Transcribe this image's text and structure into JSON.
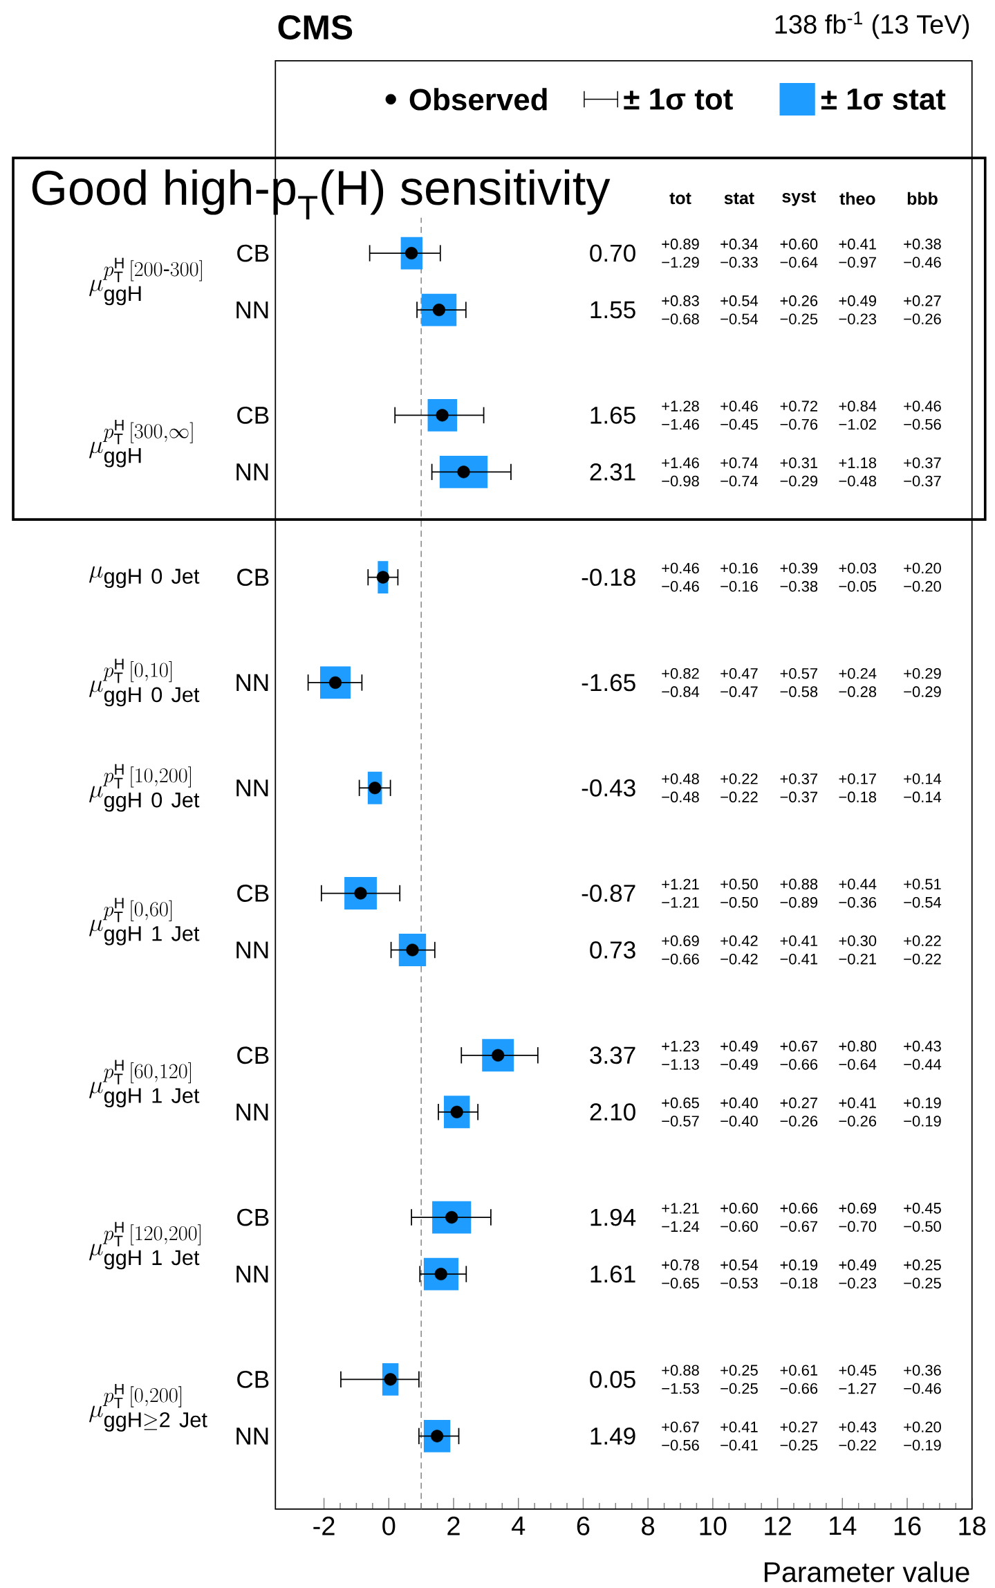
{
  "chart_data": {
    "type": "scatter",
    "orientation": "horizontal",
    "title": "CMS",
    "subtitle": "138 fb$^{-1}$ (13 TeV)",
    "xlabel": "Parameter value",
    "categories": [
      "CB",
      "NN",
      "CB",
      "NN",
      "CB",
      "NN",
      "NN",
      "CB",
      "NN",
      "CB",
      "NN",
      "CB",
      "NN",
      "CB",
      "NN"
    ],
    "series": [
      {
        "name": "± 1σ stat",
        "type": "bar",
        "color": "#1e9cff",
        "base": [
          0.37,
          1.01,
          1.2,
          1.57,
          -0.34,
          -2.12,
          -0.65,
          -1.37,
          0.31,
          2.88,
          1.7,
          1.34,
          1.08,
          -0.2,
          1.08
        ],
        "values": [
          0.67,
          1.08,
          0.91,
          1.48,
          0.32,
          0.94,
          0.44,
          1.0,
          0.84,
          0.98,
          0.8,
          1.2,
          1.07,
          0.5,
          0.82
        ]
      },
      {
        "name": "Observed",
        "color": "#000000",
        "values": [
          0.7,
          1.55,
          1.65,
          2.31,
          -0.18,
          -1.65,
          -0.43,
          -0.87,
          0.73,
          3.37,
          2.1,
          1.94,
          1.61,
          0.05,
          1.49
        ],
        "errors": [
          [
            -0.59,
            1.59
          ],
          [
            0.87,
            2.38
          ],
          [
            0.19,
            2.93
          ],
          [
            1.33,
            3.77
          ],
          [
            -0.64,
            0.28
          ],
          [
            -2.49,
            -0.83
          ],
          [
            -0.91,
            0.05
          ],
          [
            -2.08,
            0.34
          ],
          [
            0.07,
            1.42
          ],
          [
            2.24,
            4.6
          ],
          [
            1.53,
            2.75
          ],
          [
            0.7,
            3.15
          ],
          [
            0.96,
            2.39
          ],
          [
            -1.48,
            0.93
          ],
          [
            0.93,
            2.16
          ]
        ]
      }
    ],
    "xlim": [
      -3.5,
      18
    ],
    "xticks": [
      -2,
      0,
      2,
      4,
      6,
      8,
      10,
      12,
      14,
      16,
      18
    ],
    "marker": "circle",
    "legend": "top",
    "ref_lines": [
      {
        "axis": "x",
        "value": 1,
        "line_style": "dashed",
        "color": "#808080"
      }
    ],
    "annotations": [
      "Good high-p$_{T}$(H) sensitivity",
      "± 1σ tot",
      "tot",
      "stat",
      "syst",
      "theo",
      "bbb",
      "\\mu^{p_{\\mathrm{T}}^{\\mathrm{H}}\\,[200\\text{-}300]}_{\\mathrm{ggH}}",
      "\\mu^{p_{\\mathrm{T}}^{\\mathrm{H}}\\,[300,\\infty]}_{\\mathrm{ggH}}",
      "\\mu_{\\mathrm{ggH\\ 0\\ Jet}}",
      "\\mu^{p_{\\mathrm{T}}^{\\mathrm{H}}\\,[0,10]}_{\\mathrm{ggH\\ 0\\ Jet}}",
      "\\mu^{p_{\\mathrm{T}}^{\\mathrm{H}}\\,[10,200]}_{\\mathrm{ggH\\ 0\\ Jet}}",
      "\\mu^{p_{\\mathrm{T}}^{\\mathrm{H}}\\,[0,60]}_{\\mathrm{ggH\\ 1\\ Jet}}",
      "\\mu^{p_{\\mathrm{T}}^{\\mathrm{H}}\\,[60,120]}_{\\mathrm{ggH\\ 1\\ Jet}}",
      "\\mu^{p_{\\mathrm{T}}^{\\mathrm{H}}\\,[120,200]}_{\\mathrm{ggH\\ 1\\ Jet}}",
      "\\mu^{p_{\\mathrm{T}}^{\\mathrm{H}}\\,[0,200]}_{\\mathrm{ggH}\\geq\\mathrm{2\\ Jet}}",
      "+0.89",
      "−1.29",
      "+0.34",
      "−0.33",
      "+0.60",
      "−0.64",
      "+0.41",
      "−0.97",
      "+0.38",
      "−0.46",
      "+0.83",
      "−0.68",
      "+0.54",
      "−0.54",
      "+0.26",
      "−0.25",
      "+0.49",
      "−0.23",
      "+0.27",
      "−0.26",
      "+1.28",
      "−1.46",
      "+0.46",
      "−0.45",
      "+0.72",
      "−0.76",
      "+0.84",
      "−1.02",
      "+0.46",
      "−0.56",
      "+1.46",
      "−0.98",
      "+0.74",
      "−0.74",
      "+0.31",
      "−0.29",
      "+1.18",
      "−0.48",
      "+0.37",
      "−0.37",
      "+0.46",
      "−0.46",
      "+0.16",
      "−0.16",
      "+0.39",
      "−0.38",
      "+0.03",
      "−0.05",
      "+0.20",
      "−0.20",
      "+0.82",
      "−0.84",
      "+0.47",
      "−0.47",
      "+0.57",
      "−0.58",
      "+0.24",
      "−0.28",
      "+0.29",
      "−0.29",
      "+0.48",
      "−0.48",
      "+0.22",
      "−0.22",
      "+0.37",
      "−0.37",
      "+0.17",
      "−0.18",
      "+0.14",
      "−0.14",
      "+1.21",
      "−1.21",
      "+0.50",
      "−0.50",
      "+0.88",
      "−0.89",
      "+0.44",
      "−0.36",
      "+0.51",
      "−0.54",
      "+0.69",
      "−0.66",
      "+0.42",
      "−0.42",
      "+0.41",
      "−0.41",
      "+0.30",
      "−0.21",
      "+0.22",
      "−0.22",
      "+1.23",
      "−1.13",
      "+0.49",
      "−0.49",
      "+0.67",
      "−0.66",
      "+0.80",
      "−0.64",
      "+0.43",
      "−0.44",
      "+0.65",
      "−0.57",
      "+0.40",
      "−0.40",
      "+0.27",
      "−0.26",
      "+0.41",
      "−0.26",
      "+0.19",
      "−0.19",
      "+1.21",
      "−1.24",
      "+0.60",
      "−0.60",
      "+0.66",
      "−0.67",
      "+0.69",
      "−0.70",
      "+0.45",
      "−0.50",
      "+0.78",
      "−0.65",
      "+0.54",
      "−0.53",
      "+0.19",
      "−0.18",
      "+0.49",
      "−0.23",
      "+0.25",
      "−0.25",
      "+0.88",
      "−1.53",
      "+0.25",
      "−0.25",
      "+0.61",
      "−0.66",
      "+0.45",
      "−1.27",
      "+0.36",
      "−0.46",
      "+0.67",
      "−0.56",
      "+0.41",
      "−0.41",
      "+0.27",
      "−0.25",
      "+0.43",
      "−0.22",
      "+0.20",
      "−0.19",
      "0.70",
      "1.55",
      "1.65",
      "2.31",
      "-0.18",
      "-1.65",
      "-0.43",
      "-0.87",
      "0.73",
      "3.37",
      "2.10",
      "1.94",
      "1.61",
      "0.05",
      "1.49"
    ]
  }
}
